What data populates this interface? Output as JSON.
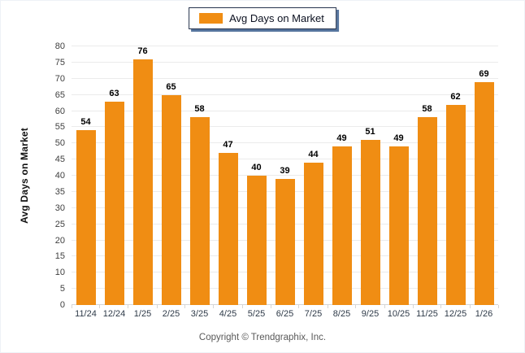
{
  "legend": {
    "label": "Avg Days on Market"
  },
  "footer": {
    "copyright": "Copyright © Trendgraphix, Inc."
  },
  "colors": {
    "bar": "#F08D13",
    "grid": "#EBEBEB",
    "axis_line": "#D6D6D6",
    "tick_text": "#404040",
    "x_label": "#2E3A48",
    "value_label": "#000000",
    "legend_border": "#26334D",
    "legend_shadow": "#56759E",
    "copyright": "#595959"
  },
  "chart_data": {
    "type": "bar",
    "title": "",
    "legend": "Avg Days on Market",
    "legend_position": "top-center",
    "categories": [
      "11/24",
      "12/24",
      "1/25",
      "2/25",
      "3/25",
      "4/25",
      "5/25",
      "6/25",
      "7/25",
      "8/25",
      "9/25",
      "10/25",
      "11/25",
      "12/25",
      "1/26"
    ],
    "values": [
      54,
      63,
      76,
      65,
      58,
      47,
      40,
      39,
      44,
      49,
      51,
      49,
      58,
      62,
      69
    ],
    "xlabel": "",
    "ylabel": "Avg Days on Market",
    "ylim": [
      0,
      80
    ],
    "ytick_step": 5,
    "grid": true,
    "data_labels": true
  }
}
